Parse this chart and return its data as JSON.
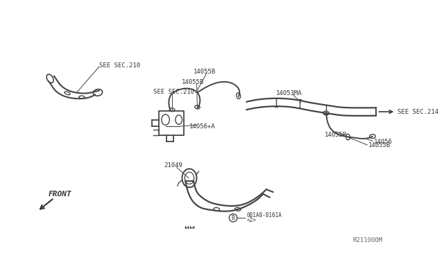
{
  "bg_color": "#ffffff",
  "line_color": "#444444",
  "text_color": "#333333",
  "ref_number": "R211000M",
  "labels": {
    "14055B_top1": "14055B",
    "14055B_top2": "14055B",
    "14055B_right1": "14055B",
    "14055B_right2": "14055B",
    "14056_right": "14056",
    "14056pA": "14056+A",
    "14053MA": "14053MA",
    "21049": "21049",
    "bolt_label": "081A8-8161A",
    "bolt_qty": "<2>",
    "see210_left": "SEE SEC.210",
    "see210_mid": "SEE SEC.210",
    "see214": "SEE SEC.214",
    "front": "FRONT"
  }
}
